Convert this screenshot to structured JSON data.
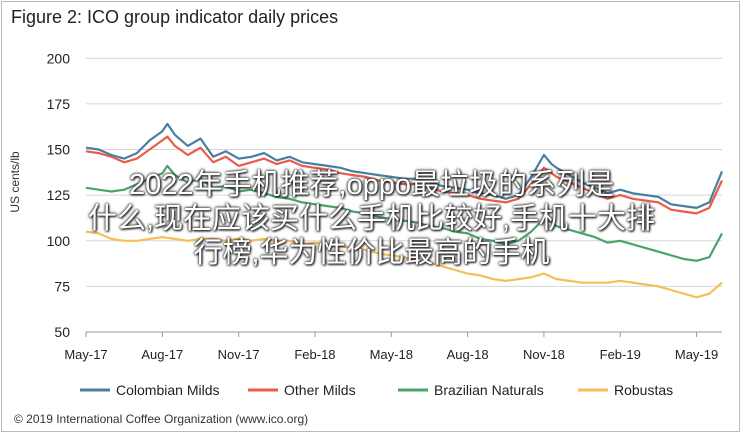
{
  "figure": {
    "title": "Figure 2: ICO group indicator daily prices",
    "source": "© 2019 International Coffee Organization (www.ico.org)"
  },
  "overlay": {
    "line1": "2022年手机推荐,oppo最垃圾的系列是",
    "line2": "什么,现在应该买什么手机比较好,手机十大排",
    "line3": "行榜,华为性价比最高的手机"
  },
  "chart_data": {
    "type": "line",
    "ylabel": "US cents/lb",
    "ylim": [
      50,
      210
    ],
    "yticks": [
      50,
      75,
      100,
      125,
      150,
      175,
      200
    ],
    "xlim": [
      0,
      25
    ],
    "xticks": [
      {
        "x": 0,
        "label": "May-17"
      },
      {
        "x": 3,
        "label": "Aug-17"
      },
      {
        "x": 6,
        "label": "Nov-17"
      },
      {
        "x": 9,
        "label": "Feb-18"
      },
      {
        "x": 12,
        "label": "May-18"
      },
      {
        "x": 15,
        "label": "Aug-18"
      },
      {
        "x": 18,
        "label": "Nov-18"
      },
      {
        "x": 21,
        "label": "Feb-19"
      },
      {
        "x": 24,
        "label": "May-19"
      }
    ],
    "grid": true,
    "legend_position": "bottom",
    "series": [
      {
        "name": "Colombian Milds",
        "color": "#4a7ea0",
        "points": [
          [
            0,
            151
          ],
          [
            0.5,
            150
          ],
          [
            1,
            147
          ],
          [
            1.5,
            145
          ],
          [
            2,
            148
          ],
          [
            2.5,
            155
          ],
          [
            3,
            160
          ],
          [
            3.2,
            164
          ],
          [
            3.5,
            158
          ],
          [
            4,
            152
          ],
          [
            4.5,
            156
          ],
          [
            5,
            146
          ],
          [
            5.5,
            149
          ],
          [
            6,
            145
          ],
          [
            6.5,
            146
          ],
          [
            7,
            148
          ],
          [
            7.5,
            144
          ],
          [
            8,
            146
          ],
          [
            8.5,
            143
          ],
          [
            9,
            142
          ],
          [
            9.5,
            141
          ],
          [
            10,
            140
          ],
          [
            10.5,
            138
          ],
          [
            11,
            137
          ],
          [
            11.5,
            136
          ],
          [
            12,
            135
          ],
          [
            12.5,
            134
          ],
          [
            13,
            134
          ],
          [
            13.5,
            132
          ],
          [
            14,
            130
          ],
          [
            14.5,
            129
          ],
          [
            15,
            128
          ],
          [
            15.5,
            126
          ],
          [
            16,
            125
          ],
          [
            16.5,
            123
          ],
          [
            17,
            125
          ],
          [
            17.5,
            135
          ],
          [
            18,
            147
          ],
          [
            18.3,
            142
          ],
          [
            18.5,
            140
          ],
          [
            19,
            136
          ],
          [
            19.5,
            132
          ],
          [
            20,
            129
          ],
          [
            20.5,
            126
          ],
          [
            21,
            128
          ],
          [
            21.5,
            126
          ],
          [
            22,
            125
          ],
          [
            22.5,
            124
          ],
          [
            23,
            120
          ],
          [
            23.5,
            119
          ],
          [
            24,
            118
          ],
          [
            24.5,
            121
          ],
          [
            25,
            138
          ]
        ]
      },
      {
        "name": "Other Milds",
        "color": "#ea5b4a",
        "points": [
          [
            0,
            149
          ],
          [
            0.5,
            148
          ],
          [
            1,
            146
          ],
          [
            1.5,
            143
          ],
          [
            2,
            145
          ],
          [
            2.5,
            150
          ],
          [
            3,
            155
          ],
          [
            3.2,
            157
          ],
          [
            3.5,
            152
          ],
          [
            4,
            147
          ],
          [
            4.5,
            151
          ],
          [
            5,
            143
          ],
          [
            5.5,
            146
          ],
          [
            6,
            141
          ],
          [
            6.5,
            143
          ],
          [
            7,
            145
          ],
          [
            7.5,
            142
          ],
          [
            8,
            144
          ],
          [
            8.5,
            141
          ],
          [
            9,
            140
          ],
          [
            9.5,
            139
          ],
          [
            10,
            137
          ],
          [
            10.5,
            136
          ],
          [
            11,
            135
          ],
          [
            11.5,
            133
          ],
          [
            12,
            132
          ],
          [
            12.5,
            131
          ],
          [
            13,
            131
          ],
          [
            13.5,
            129
          ],
          [
            14,
            127
          ],
          [
            14.5,
            126
          ],
          [
            15,
            125
          ],
          [
            15.5,
            123
          ],
          [
            16,
            122
          ],
          [
            16.5,
            121
          ],
          [
            17,
            123
          ],
          [
            17.5,
            131
          ],
          [
            18,
            140
          ],
          [
            18.3,
            137
          ],
          [
            18.5,
            135
          ],
          [
            19,
            132
          ],
          [
            19.5,
            129
          ],
          [
            20,
            126
          ],
          [
            20.5,
            123
          ],
          [
            21,
            125
          ],
          [
            21.5,
            123
          ],
          [
            22,
            122
          ],
          [
            22.5,
            121
          ],
          [
            23,
            117
          ],
          [
            23.5,
            116
          ],
          [
            24,
            115
          ],
          [
            24.5,
            118
          ],
          [
            25,
            133
          ]
        ]
      },
      {
        "name": "Brazilian Naturals",
        "color": "#49a36a",
        "points": [
          [
            0,
            129
          ],
          [
            0.5,
            128
          ],
          [
            1,
            127
          ],
          [
            1.5,
            128
          ],
          [
            2,
            131
          ],
          [
            2.5,
            134
          ],
          [
            3,
            137
          ],
          [
            3.2,
            141
          ],
          [
            3.5,
            136
          ],
          [
            4,
            132
          ],
          [
            4.5,
            134
          ],
          [
            5,
            129
          ],
          [
            5.5,
            130
          ],
          [
            6,
            127
          ],
          [
            6.5,
            128
          ],
          [
            7,
            126
          ],
          [
            7.5,
            124
          ],
          [
            8,
            123
          ],
          [
            8.5,
            121
          ],
          [
            9,
            120
          ],
          [
            9.5,
            119
          ],
          [
            10,
            118
          ],
          [
            10.5,
            116
          ],
          [
            11,
            115
          ],
          [
            11.5,
            113
          ],
          [
            12,
            112
          ],
          [
            12.5,
            111
          ],
          [
            13,
            110
          ],
          [
            13.5,
            108
          ],
          [
            14,
            107
          ],
          [
            14.5,
            105
          ],
          [
            15,
            104
          ],
          [
            15.5,
            101
          ],
          [
            16,
            100
          ],
          [
            16.5,
            98
          ],
          [
            17,
            100
          ],
          [
            17.5,
            105
          ],
          [
            18,
            112
          ],
          [
            18.3,
            110
          ],
          [
            18.5,
            108
          ],
          [
            19,
            106
          ],
          [
            19.5,
            104
          ],
          [
            20,
            102
          ],
          [
            20.5,
            99
          ],
          [
            21,
            100
          ],
          [
            21.5,
            98
          ],
          [
            22,
            96
          ],
          [
            22.5,
            94
          ],
          [
            23,
            92
          ],
          [
            23.5,
            90
          ],
          [
            24,
            89
          ],
          [
            24.5,
            91
          ],
          [
            25,
            104
          ]
        ]
      },
      {
        "name": "Robustas",
        "color": "#f5be5a",
        "points": [
          [
            0,
            105
          ],
          [
            0.5,
            104
          ],
          [
            1,
            101
          ],
          [
            1.5,
            100
          ],
          [
            2,
            100
          ],
          [
            2.5,
            101
          ],
          [
            3,
            102
          ],
          [
            3.5,
            101
          ],
          [
            4,
            100
          ],
          [
            4.5,
            101
          ],
          [
            5,
            101
          ],
          [
            5.5,
            100
          ],
          [
            6,
            101
          ],
          [
            6.5,
            100
          ],
          [
            7,
            101
          ],
          [
            7.5,
            100
          ],
          [
            8,
            100
          ],
          [
            8.5,
            98
          ],
          [
            9,
            99
          ],
          [
            9.5,
            98
          ],
          [
            10,
            97
          ],
          [
            10.5,
            96
          ],
          [
            11,
            95
          ],
          [
            11.5,
            93
          ],
          [
            12,
            92
          ],
          [
            12.5,
            91
          ],
          [
            13,
            89
          ],
          [
            13.5,
            88
          ],
          [
            14,
            86
          ],
          [
            14.5,
            84
          ],
          [
            15,
            82
          ],
          [
            15.5,
            81
          ],
          [
            16,
            79
          ],
          [
            16.5,
            78
          ],
          [
            17,
            79
          ],
          [
            17.5,
            80
          ],
          [
            18,
            82
          ],
          [
            18.5,
            79
          ],
          [
            19,
            78
          ],
          [
            19.5,
            77
          ],
          [
            20,
            77
          ],
          [
            20.5,
            77
          ],
          [
            21,
            78
          ],
          [
            21.5,
            77
          ],
          [
            22,
            76
          ],
          [
            22.5,
            75
          ],
          [
            23,
            73
          ],
          [
            23.5,
            71
          ],
          [
            24,
            69
          ],
          [
            24.5,
            71
          ],
          [
            25,
            77
          ]
        ]
      }
    ]
  }
}
